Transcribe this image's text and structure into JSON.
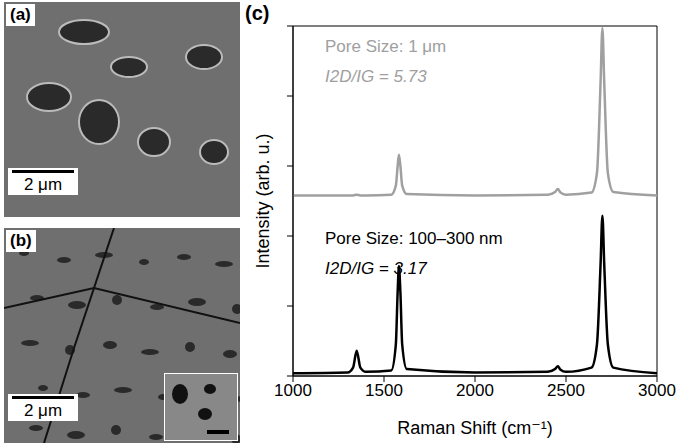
{
  "panels": [
    {
      "label": "(a)",
      "scale_bar": "2 μm"
    },
    {
      "label": "(b)",
      "scale_bar": "2 μm"
    }
  ],
  "chart_data": {
    "type": "line",
    "panel_label": "(c)",
    "x_label": "Raman Shift (cm⁻¹)",
    "y_label": "Intensity (arb. u.)",
    "x": [
      1000,
      1300,
      1330,
      1350,
      1370,
      1400,
      1540,
      1565,
      1575,
      1582,
      1590,
      1600,
      1625,
      2000,
      2400,
      2440,
      2455,
      2470,
      2500,
      2640,
      2670,
      2690,
      2700,
      2710,
      2730,
      2760,
      3000
    ],
    "series": [
      {
        "name": "Pore Size: 1 μm",
        "color": "#a0a0a0",
        "values": [
          2.58,
          2.58,
          2.58,
          2.59,
          2.58,
          2.58,
          2.59,
          2.72,
          3.0,
          3.16,
          3.0,
          2.72,
          2.6,
          2.58,
          2.59,
          2.63,
          2.67,
          2.62,
          2.59,
          2.62,
          2.9,
          4.2,
          4.97,
          4.2,
          2.9,
          2.63,
          2.58
        ]
      },
      {
        "name": "Pore Size: 100–300 nm",
        "color": "#000000",
        "values": [
          0.04,
          0.05,
          0.12,
          0.36,
          0.12,
          0.06,
          0.08,
          0.45,
          1.2,
          1.57,
          1.2,
          0.45,
          0.1,
          0.05,
          0.06,
          0.1,
          0.14,
          0.09,
          0.06,
          0.12,
          0.45,
          1.6,
          2.29,
          1.6,
          0.45,
          0.12,
          0.04
        ]
      }
    ],
    "annotations": [
      {
        "text": "I2D/IG = 5.73",
        "color": "#a0a0a0"
      },
      {
        "text": "I2D/IG = 3.17",
        "color": "#000000"
      }
    ],
    "xlim": [
      1000,
      3000
    ],
    "xticks": [
      1000,
      1500,
      2000,
      2500,
      3000
    ],
    "ylim": [
      0,
      5
    ],
    "yticks": [
      0,
      1,
      2,
      3,
      4,
      5
    ],
    "tick_labels": "x",
    "grid": false
  }
}
